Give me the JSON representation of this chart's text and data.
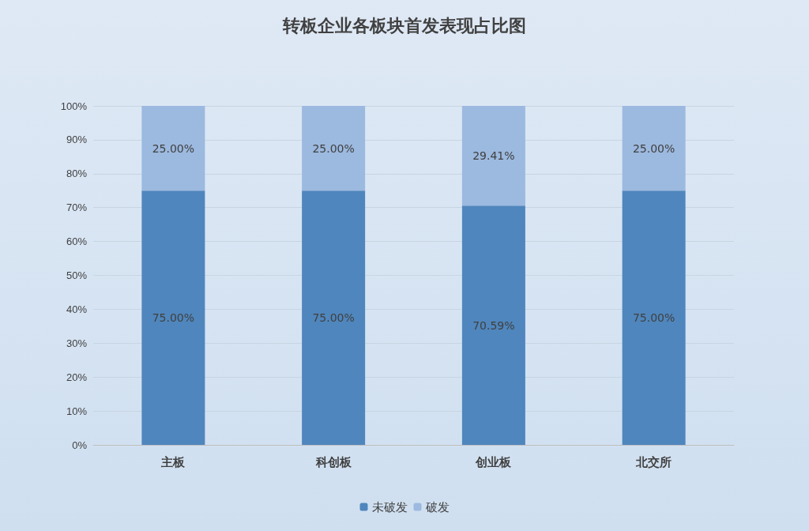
{
  "chart_data": {
    "type": "bar",
    "title": "转板企业各板块首发表现占比图",
    "stacked": true,
    "categories": [
      "主板",
      "科创板",
      "创业板",
      "北交所"
    ],
    "series": [
      {
        "name": "未破发",
        "color": "#4f86bd",
        "values": [
          75,
          75,
          70.59,
          75
        ],
        "value_labels": [
          "75.00%",
          "75.00%",
          "70.59%",
          "75.00%"
        ]
      },
      {
        "name": "破发",
        "color": "#9cb9df",
        "values": [
          25,
          25,
          29.41,
          25
        ],
        "value_labels": [
          "25.00%",
          "25.00%",
          "29.41%",
          "25.00%"
        ]
      }
    ],
    "ylim": [
      0,
      100
    ],
    "yticks": [
      {
        "value": 0,
        "label": "0%"
      },
      {
        "value": 10,
        "label": "10%"
      },
      {
        "value": 20,
        "label": "20%"
      },
      {
        "value": 30,
        "label": "30%"
      },
      {
        "value": 40,
        "label": "40%"
      },
      {
        "value": 50,
        "label": "50%"
      },
      {
        "value": 60,
        "label": "60%"
      },
      {
        "value": 70,
        "label": "70%"
      },
      {
        "value": 80,
        "label": "80%"
      },
      {
        "value": 90,
        "label": "90%"
      },
      {
        "value": 100,
        "label": "100%"
      }
    ],
    "grid": "y",
    "legend": "bottom"
  }
}
